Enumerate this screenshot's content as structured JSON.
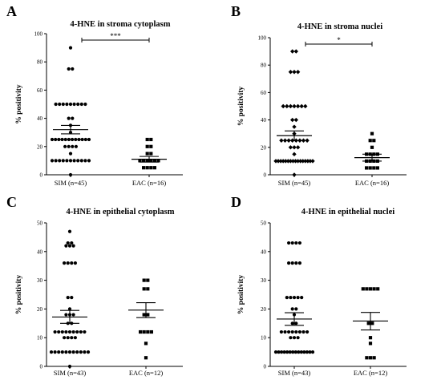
{
  "chart_data": [
    {
      "type": "scatter",
      "panel": "A",
      "title": "4-HNE in stroma cytoplasm",
      "ylabel": "% positivity",
      "ylim": [
        0,
        100
      ],
      "yticks": [
        0,
        20,
        40,
        60,
        80,
        100
      ],
      "categories": [
        "SIM (n=45)",
        "EAC (n=16)"
      ],
      "significance": "***",
      "groups": [
        {
          "marker": "circle",
          "mean": 32,
          "sem_low": 29,
          "sem_high": 35,
          "values": [
            0,
            10,
            10,
            10,
            10,
            10,
            10,
            10,
            10,
            10,
            10,
            10,
            15,
            20,
            20,
            20,
            20,
            25,
            25,
            25,
            25,
            25,
            25,
            25,
            25,
            25,
            25,
            25,
            25,
            30,
            35,
            40,
            40,
            50,
            50,
            50,
            50,
            50,
            50,
            50,
            50,
            50,
            75,
            75,
            90
          ]
        },
        {
          "marker": "square",
          "mean": 11,
          "sem_low": 9,
          "sem_high": 13,
          "values": [
            5,
            5,
            5,
            5,
            10,
            10,
            10,
            10,
            10,
            10,
            15,
            15,
            20,
            20,
            25,
            25
          ]
        }
      ]
    },
    {
      "type": "scatter",
      "panel": "B",
      "title": "4-HNE in stroma nuclei",
      "ylabel": "% positivity",
      "ylim": [
        0,
        100
      ],
      "yticks": [
        0,
        20,
        40,
        60,
        80,
        100
      ],
      "categories": [
        "SIM (n=45)",
        "EAC (n=16)"
      ],
      "significance": "*",
      "groups": [
        {
          "marker": "diamond",
          "mean": 28.5,
          "sem_low": 25,
          "sem_high": 32,
          "values": [
            0,
            10,
            10,
            10,
            10,
            10,
            10,
            10,
            10,
            10,
            10,
            10,
            10,
            10,
            10,
            10,
            10,
            15,
            20,
            20,
            20,
            25,
            25,
            25,
            25,
            25,
            25,
            25,
            25,
            30,
            35,
            40,
            40,
            50,
            50,
            50,
            50,
            50,
            50,
            50,
            75,
            75,
            75,
            90,
            90
          ]
        },
        {
          "marker": "square",
          "mean": 12.5,
          "sem_low": 10,
          "sem_high": 15,
          "values": [
            5,
            5,
            5,
            5,
            10,
            10,
            10,
            10,
            15,
            15,
            15,
            15,
            20,
            25,
            25,
            30
          ]
        }
      ]
    },
    {
      "type": "scatter",
      "panel": "C",
      "title": "4-HNE in epithelial cytoplasm",
      "ylabel": "% positivity",
      "ylim": [
        0,
        50
      ],
      "yticks": [
        0,
        10,
        20,
        30,
        40,
        50
      ],
      "categories": [
        "SIM (n=43)",
        "EAC (n=12)"
      ],
      "groups": [
        {
          "marker": "circle",
          "mean": 17.2,
          "sem_low": 15,
          "sem_high": 19.5,
          "values": [
            0,
            5,
            5,
            5,
            5,
            5,
            5,
            5,
            5,
            5,
            5,
            5,
            10,
            10,
            10,
            10,
            12,
            12,
            12,
            12,
            12,
            12,
            12,
            12,
            12,
            15,
            15,
            18,
            18,
            18,
            20,
            24,
            24,
            36,
            36,
            36,
            36,
            42,
            42,
            42,
            43,
            43,
            47
          ]
        },
        {
          "marker": "square",
          "mean": 19.6,
          "sem_low": 17,
          "sem_high": 22.2,
          "values": [
            3,
            8,
            12,
            12,
            12,
            12,
            18,
            18,
            27,
            27,
            30,
            30
          ]
        }
      ]
    },
    {
      "type": "scatter",
      "panel": "D",
      "title": "4-HNE in epithelial nuclei",
      "ylabel": "% positivity",
      "ylim": [
        0,
        50
      ],
      "yticks": [
        0,
        10,
        20,
        30,
        40,
        50
      ],
      "categories": [
        "SIM (n=43)",
        "EAC (n=12)"
      ],
      "groups": [
        {
          "marker": "circle",
          "mean": 16.5,
          "sem_low": 14.3,
          "sem_high": 18.7,
          "values": [
            5,
            5,
            5,
            5,
            5,
            5,
            5,
            5,
            5,
            5,
            5,
            5,
            5,
            5,
            10,
            10,
            10,
            12,
            12,
            12,
            12,
            12,
            12,
            12,
            12,
            15,
            15,
            18,
            20,
            20,
            24,
            24,
            24,
            24,
            24,
            36,
            36,
            36,
            36,
            43,
            43,
            43,
            43
          ]
        },
        {
          "marker": "square",
          "mean": 15.8,
          "sem_low": 12.7,
          "sem_high": 18.8,
          "values": [
            3,
            3,
            3,
            8,
            10,
            15,
            15,
            27,
            27,
            27,
            27,
            27
          ]
        }
      ]
    }
  ]
}
